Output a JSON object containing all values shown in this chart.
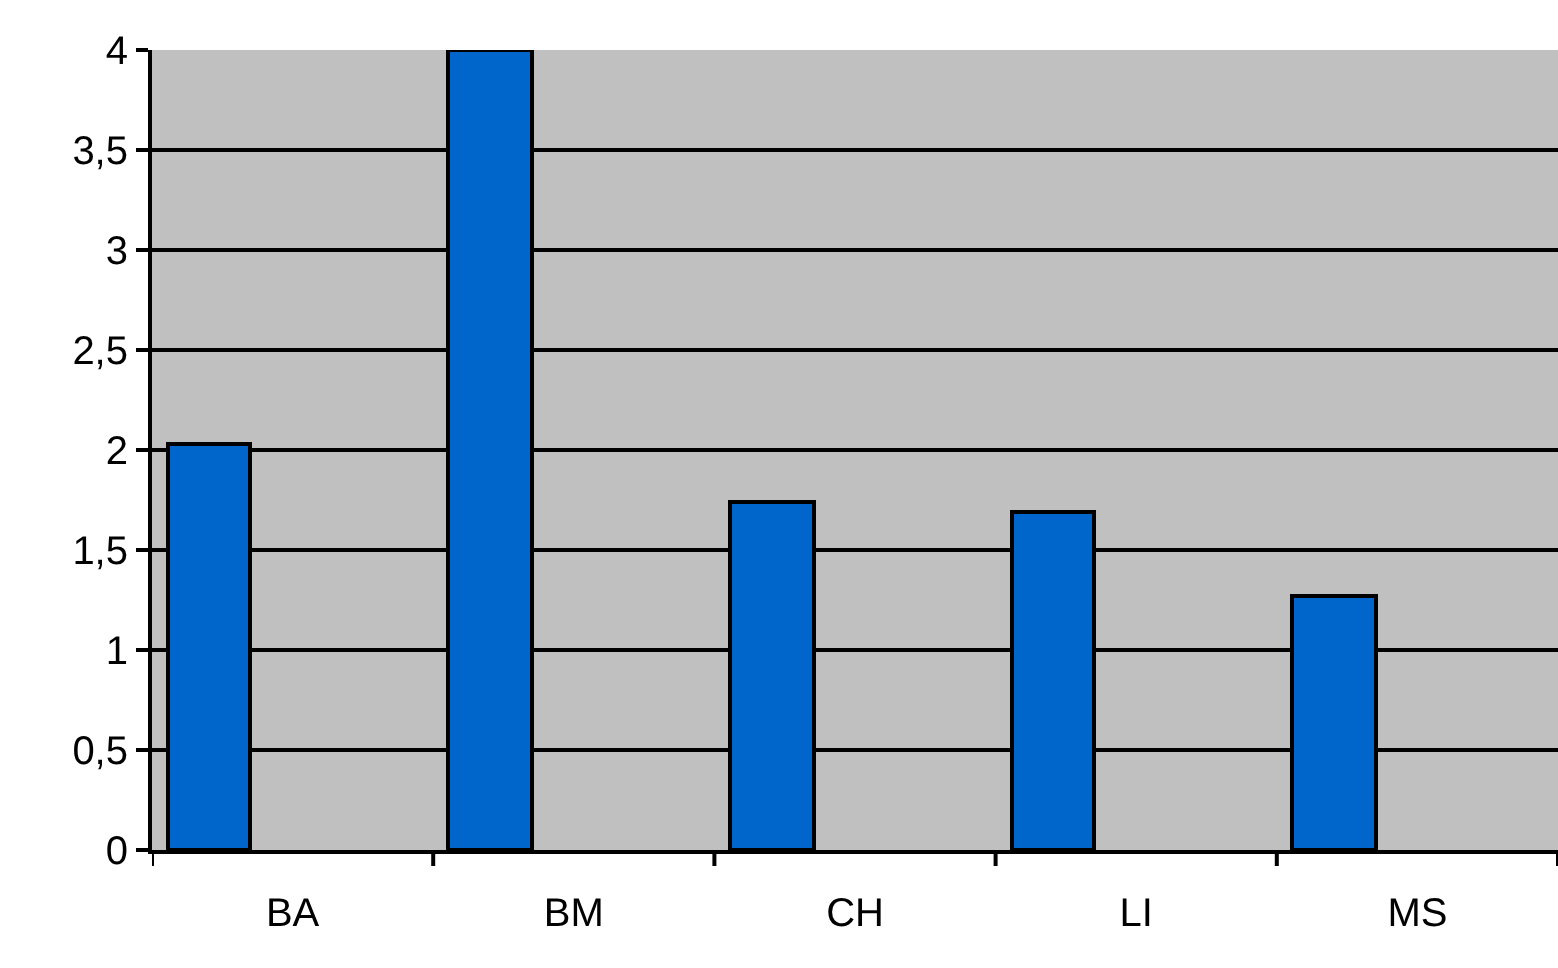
{
  "chart_data": {
    "type": "bar",
    "categories": [
      "BA",
      "BM",
      "CH",
      "LI",
      "MS"
    ],
    "values": [
      2.03,
      4.0,
      1.74,
      1.69,
      1.27
    ],
    "color": "#0066cc",
    "ylim": [
      0,
      4
    ],
    "yticks": [
      0,
      {
        "value": 0.5,
        "label": "0,5"
      },
      1,
      {
        "value": 1.5,
        "label": "1,5"
      },
      2,
      {
        "value": 2.5,
        "label": "2,5"
      },
      3,
      {
        "value": 3.5,
        "label": "3,5"
      },
      4
    ],
    "grid": "y",
    "legend": false
  }
}
